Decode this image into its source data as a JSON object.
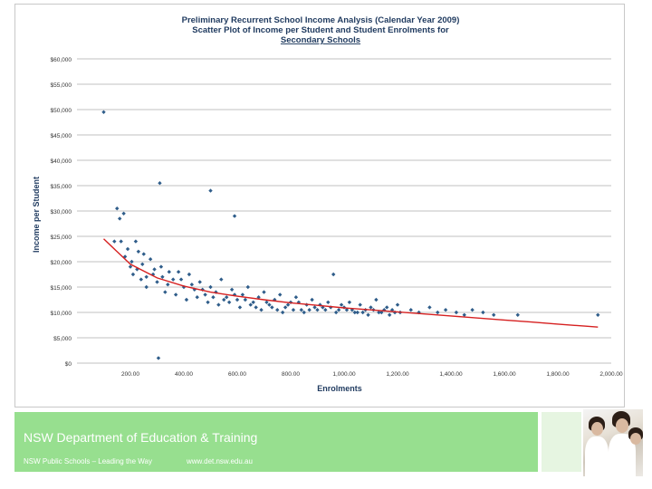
{
  "footer": {
    "title": "NSW Department of Education & Training",
    "tagline": "NSW Public Schools – Leading the Way",
    "url": "www.det.nsw.edu.au"
  },
  "colors": {
    "points": "#2f5d8a",
    "trend": "#d62020",
    "grid": "#c0c0c0",
    "footer_band": "#97df8f"
  },
  "chart_data": {
    "type": "scatter",
    "title_lines": [
      "Preliminary Recurrent School Income Analysis (Calendar Year 2009)",
      "Scatter Plot of Income per Student and Student Enrolments for",
      "Secondary Schools"
    ],
    "xlabel": "Enrolments",
    "ylabel": "Income per Student",
    "xlim": [
      0,
      2000
    ],
    "ylim": [
      0,
      60000
    ],
    "x_ticks": [
      200,
      400,
      600,
      800,
      1000,
      1200,
      1400,
      1600,
      1800,
      2000
    ],
    "x_tick_labels": [
      "200.00",
      "400.00",
      "600.00",
      "800.00",
      "1,000.00",
      "1,200.00",
      "1,400.00",
      "1,600.00",
      "1,800.00",
      "2,000.00"
    ],
    "y_ticks": [
      0,
      5000,
      10000,
      15000,
      20000,
      25000,
      30000,
      35000,
      40000,
      45000,
      50000,
      55000,
      60000
    ],
    "y_tick_labels": [
      "$0",
      "$5,000",
      "$10,000",
      "$15,000",
      "$20,000",
      "$25,000",
      "$30,000",
      "$35,000",
      "$40,000",
      "$45,000",
      "$50,000",
      "$55,000",
      "$60,000"
    ],
    "grid": true,
    "points": [
      [
        100,
        49500
      ],
      [
        150,
        30500
      ],
      [
        160,
        28500
      ],
      [
        175,
        29500
      ],
      [
        310,
        35500
      ],
      [
        500,
        34000
      ],
      [
        590,
        29000
      ],
      [
        305,
        1000
      ],
      [
        140,
        24000
      ],
      [
        165,
        24000
      ],
      [
        180,
        21000
      ],
      [
        220,
        24000
      ],
      [
        230,
        22000
      ],
      [
        250,
        21500
      ],
      [
        275,
        20500
      ],
      [
        200,
        19000
      ],
      [
        210,
        17500
      ],
      [
        240,
        16500
      ],
      [
        260,
        17000
      ],
      [
        290,
        18500
      ],
      [
        300,
        16000
      ],
      [
        320,
        17000
      ],
      [
        340,
        15500
      ],
      [
        360,
        16500
      ],
      [
        380,
        18000
      ],
      [
        400,
        15000
      ],
      [
        420,
        17500
      ],
      [
        440,
        14500
      ],
      [
        460,
        16000
      ],
      [
        480,
        13500
      ],
      [
        500,
        15000
      ],
      [
        520,
        14000
      ],
      [
        540,
        16500
      ],
      [
        560,
        13000
      ],
      [
        580,
        14500
      ],
      [
        600,
        12500
      ],
      [
        620,
        13500
      ],
      [
        640,
        15000
      ],
      [
        660,
        12000
      ],
      [
        680,
        13000
      ],
      [
        700,
        14000
      ],
      [
        720,
        11500
      ],
      [
        740,
        12500
      ],
      [
        760,
        13500
      ],
      [
        780,
        11000
      ],
      [
        800,
        12000
      ],
      [
        820,
        13000
      ],
      [
        840,
        10500
      ],
      [
        860,
        11500
      ],
      [
        880,
        12500
      ],
      [
        900,
        10500
      ],
      [
        920,
        11000
      ],
      [
        940,
        12000
      ],
      [
        960,
        17500
      ],
      [
        980,
        10500
      ],
      [
        1000,
        11000
      ],
      [
        1020,
        12000
      ],
      [
        1040,
        10000
      ],
      [
        1060,
        11500
      ],
      [
        1080,
        10500
      ],
      [
        1100,
        11000
      ],
      [
        1120,
        12500
      ],
      [
        1140,
        10000
      ],
      [
        1160,
        11000
      ],
      [
        1180,
        10500
      ],
      [
        1200,
        11500
      ],
      [
        260,
        15000
      ],
      [
        330,
        14000
      ],
      [
        370,
        13500
      ],
      [
        410,
        12500
      ],
      [
        450,
        13000
      ],
      [
        490,
        12000
      ],
      [
        530,
        11500
      ],
      [
        570,
        12000
      ],
      [
        610,
        11000
      ],
      [
        650,
        11500
      ],
      [
        690,
        10500
      ],
      [
        730,
        11000
      ],
      [
        770,
        10000
      ],
      [
        810,
        10500
      ],
      [
        850,
        10000
      ],
      [
        890,
        11000
      ],
      [
        930,
        10500
      ],
      [
        970,
        10000
      ],
      [
        1010,
        10500
      ],
      [
        1050,
        10000
      ],
      [
        1090,
        9500
      ],
      [
        1130,
        10000
      ],
      [
        1170,
        9500
      ],
      [
        1210,
        10000
      ],
      [
        1250,
        10500
      ],
      [
        1280,
        10000
      ],
      [
        1320,
        11000
      ],
      [
        1350,
        10000
      ],
      [
        1380,
        10500
      ],
      [
        1420,
        10000
      ],
      [
        1450,
        9500
      ],
      [
        1480,
        10500
      ],
      [
        1520,
        10000
      ],
      [
        1560,
        9500
      ],
      [
        1650,
        9500
      ],
      [
        1950,
        9500
      ],
      [
        190,
        22500
      ],
      [
        205,
        20000
      ],
      [
        225,
        18500
      ],
      [
        245,
        19500
      ],
      [
        285,
        17500
      ],
      [
        315,
        19000
      ],
      [
        345,
        18000
      ],
      [
        390,
        16500
      ],
      [
        430,
        15500
      ],
      [
        470,
        14500
      ],
      [
        510,
        13000
      ],
      [
        550,
        12500
      ],
      [
        590,
        13500
      ],
      [
        630,
        12500
      ],
      [
        670,
        11000
      ],
      [
        710,
        12000
      ],
      [
        750,
        10500
      ],
      [
        790,
        11500
      ],
      [
        830,
        12000
      ],
      [
        870,
        10500
      ],
      [
        910,
        11500
      ],
      [
        950,
        11000
      ],
      [
        990,
        11500
      ],
      [
        1030,
        10500
      ],
      [
        1070,
        10000
      ],
      [
        1110,
        10500
      ],
      [
        1150,
        10500
      ],
      [
        1190,
        10000
      ]
    ],
    "trend": [
      [
        100,
        24500
      ],
      [
        200,
        19500
      ],
      [
        300,
        16800
      ],
      [
        400,
        15200
      ],
      [
        500,
        14000
      ],
      [
        600,
        13200
      ],
      [
        700,
        12500
      ],
      [
        800,
        11900
      ],
      [
        900,
        11400
      ],
      [
        1000,
        10900
      ],
      [
        1100,
        10500
      ],
      [
        1200,
        10100
      ],
      [
        1300,
        9700
      ],
      [
        1400,
        9300
      ],
      [
        1500,
        8900
      ],
      [
        1600,
        8500
      ],
      [
        1700,
        8100
      ],
      [
        1800,
        7700
      ],
      [
        1900,
        7300
      ],
      [
        1950,
        7100
      ]
    ]
  }
}
